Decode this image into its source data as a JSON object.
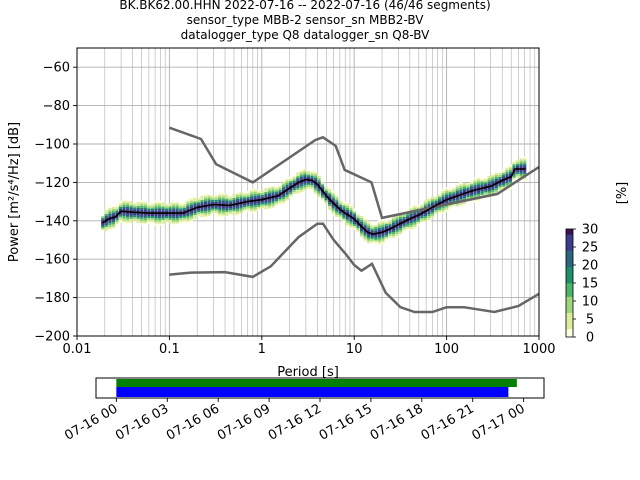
{
  "title": {
    "line1": "BK.BK62.00.HHN   2022-07-16 -- 2022-07-16  (46/46 segments)",
    "line2": "sensor_type MBB-2 sensor_sn MBB2-BV",
    "line3": "datalogger_type Q8 datalogger_sn Q8-BV"
  },
  "chart_data": {
    "type": "heatmap",
    "x_scale": "log",
    "xlabel": "Period [s]",
    "ylabel": "Power [m²/s⁴/Hz] [dB]",
    "xlim": [
      0.01,
      1000
    ],
    "ylim": [
      -200,
      -50
    ],
    "x_ticks": [
      {
        "value": 0.01,
        "label": "0.01"
      },
      {
        "value": 0.1,
        "label": "0.1"
      },
      {
        "value": 1,
        "label": "1"
      },
      {
        "value": 10,
        "label": "10"
      },
      {
        "value": 100,
        "label": "100"
      },
      {
        "value": 1000,
        "label": "1000"
      }
    ],
    "y_ticks": [
      {
        "value": -200,
        "label": "−200"
      },
      {
        "value": -180,
        "label": "−180"
      },
      {
        "value": -160,
        "label": "−160"
      },
      {
        "value": -140,
        "label": "−140"
      },
      {
        "value": -120,
        "label": "−120"
      },
      {
        "value": -100,
        "label": "−100"
      },
      {
        "value": -80,
        "label": "−80"
      },
      {
        "value": -60,
        "label": "−60"
      }
    ],
    "grid": true,
    "mean_curve": [
      [
        0.019,
        -141
      ],
      [
        0.022,
        -139
      ],
      [
        0.026,
        -138
      ],
      [
        0.03,
        -135
      ],
      [
        0.04,
        -135.5
      ],
      [
        0.06,
        -136
      ],
      [
        0.1,
        -136
      ],
      [
        0.14,
        -136
      ],
      [
        0.2,
        -133
      ],
      [
        0.3,
        -131.5
      ],
      [
        0.45,
        -132
      ],
      [
        0.7,
        -130
      ],
      [
        1,
        -129
      ],
      [
        1.5,
        -127
      ],
      [
        2,
        -123
      ],
      [
        2.5,
        -120
      ],
      [
        3,
        -118.5
      ],
      [
        3.5,
        -119
      ],
      [
        4,
        -121
      ],
      [
        5,
        -127
      ],
      [
        6,
        -131
      ],
      [
        7,
        -134
      ],
      [
        8,
        -136
      ],
      [
        10,
        -139
      ],
      [
        12,
        -143
      ],
      [
        14,
        -146
      ],
      [
        16,
        -147
      ],
      [
        20,
        -146
      ],
      [
        25,
        -144
      ],
      [
        30,
        -142
      ],
      [
        40,
        -139
      ],
      [
        50,
        -137
      ],
      [
        70,
        -133
      ],
      [
        100,
        -129
      ],
      [
        150,
        -126
      ],
      [
        200,
        -124
      ],
      [
        300,
        -122
      ],
      [
        400,
        -119
      ],
      [
        500,
        -117
      ],
      [
        550,
        -113
      ],
      [
        700,
        -113
      ]
    ],
    "nlnm": [
      [
        0.1,
        -168
      ],
      [
        0.17,
        -167
      ],
      [
        0.4,
        -166.7
      ],
      [
        0.8,
        -169.2
      ],
      [
        1.25,
        -163.7
      ],
      [
        2.5,
        -148.5
      ],
      [
        4,
        -141.5
      ],
      [
        4.6,
        -141.5
      ],
      [
        6,
        -150
      ],
      [
        8,
        -157
      ],
      [
        10,
        -163
      ],
      [
        12,
        -166
      ],
      [
        15.6,
        -162.4
      ],
      [
        21.9,
        -177.5
      ],
      [
        31.6,
        -185
      ],
      [
        45,
        -187.5
      ],
      [
        70,
        -187.5
      ],
      [
        100,
        -185
      ],
      [
        154,
        -185
      ],
      [
        328,
        -187.5
      ],
      [
        600,
        -184.4
      ],
      [
        1000,
        -178
      ]
    ],
    "nhnm": [
      [
        0.1,
        -91.5
      ],
      [
        0.22,
        -97.4
      ],
      [
        0.32,
        -110.5
      ],
      [
        0.8,
        -120
      ],
      [
        3.8,
        -97.9
      ],
      [
        4.6,
        -96.5
      ],
      [
        6.3,
        -101
      ],
      [
        7.9,
        -113.5
      ],
      [
        15.4,
        -120
      ],
      [
        20,
        -138.5
      ],
      [
        354.8,
        -126
      ],
      [
        1000,
        -112
      ]
    ],
    "colorbar": {
      "label": "[%]",
      "min": 0,
      "max": 30,
      "ticks": [
        {
          "value": 0,
          "label": "0"
        },
        {
          "value": 5,
          "label": "5"
        },
        {
          "value": 10,
          "label": "10"
        },
        {
          "value": 15,
          "label": "15"
        },
        {
          "value": 20,
          "label": "20"
        },
        {
          "value": 25,
          "label": "25"
        },
        {
          "value": 30,
          "label": "30"
        }
      ],
      "colors": [
        "#fefee0",
        "#dbee9c",
        "#9ed67b",
        "#4cb56a",
        "#1d8f6b",
        "#2a6680",
        "#3b3d88",
        "#3b1152"
      ]
    },
    "time_axis": {
      "ticks": [
        {
          "value": 0,
          "label": "07-16 00"
        },
        {
          "value": 3,
          "label": "07-16 03"
        },
        {
          "value": 6,
          "label": "07-16 06"
        },
        {
          "value": 9,
          "label": "07-16 09"
        },
        {
          "value": 12,
          "label": "07-16 12"
        },
        {
          "value": 15,
          "label": "07-16 15"
        },
        {
          "value": 18,
          "label": "07-16 18"
        },
        {
          "value": 21,
          "label": "07-16 21"
        },
        {
          "value": 24,
          "label": "07-17 00"
        }
      ],
      "range_hours": [
        -1.2,
        25.2
      ],
      "data_coverage": [
        0,
        23.6
      ],
      "psd_coverage": [
        0,
        23.1
      ],
      "data_color": "#008000",
      "psd_color": "#0000ff"
    }
  }
}
